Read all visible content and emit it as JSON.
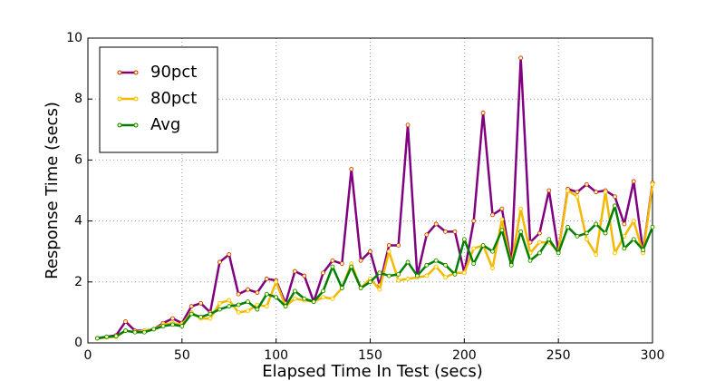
{
  "chart_data": {
    "type": "line",
    "xlabel": "Elapsed Time In Test (secs)",
    "ylabel": "Response Time (secs)",
    "x": [
      5,
      10,
      15,
      20,
      25,
      30,
      35,
      40,
      45,
      50,
      55,
      60,
      65,
      70,
      75,
      80,
      85,
      90,
      95,
      100,
      105,
      110,
      115,
      120,
      125,
      130,
      135,
      140,
      145,
      150,
      155,
      160,
      165,
      170,
      175,
      180,
      185,
      190,
      195,
      200,
      205,
      210,
      215,
      220,
      225,
      230,
      235,
      240,
      245,
      250,
      255,
      260,
      265,
      270,
      275,
      280,
      285,
      290,
      295,
      300
    ],
    "series": [
      {
        "name": "90pct",
        "color": "#800080",
        "values": [
          0.15,
          0.2,
          0.25,
          0.7,
          0.4,
          0.4,
          0.45,
          0.65,
          0.8,
          0.65,
          1.2,
          1.3,
          1.0,
          2.65,
          2.9,
          1.6,
          1.75,
          1.65,
          2.1,
          2.05,
          1.3,
          2.35,
          2.2,
          1.35,
          2.3,
          2.7,
          2.6,
          5.7,
          2.7,
          3.0,
          1.9,
          3.2,
          3.2,
          7.15,
          2.2,
          3.55,
          3.9,
          3.65,
          3.65,
          2.3,
          4.0,
          7.55,
          4.2,
          4.4,
          2.6,
          9.35,
          3.3,
          3.6,
          5.0,
          3.0,
          5.05,
          4.95,
          5.2,
          4.95,
          5.0,
          4.8,
          3.9,
          5.3,
          3.0,
          5.25
        ]
      },
      {
        "name": "80pct",
        "color": "#f5b800",
        "values": [
          0.15,
          0.18,
          0.2,
          0.4,
          0.35,
          0.4,
          0.45,
          0.6,
          0.65,
          0.6,
          1.0,
          0.8,
          0.8,
          1.3,
          1.4,
          1.0,
          1.05,
          1.25,
          1.2,
          2.0,
          1.2,
          1.45,
          1.4,
          1.35,
          1.5,
          1.45,
          1.8,
          2.6,
          1.8,
          2.1,
          1.75,
          3.0,
          2.05,
          2.1,
          2.15,
          2.2,
          2.5,
          2.15,
          2.3,
          2.3,
          3.1,
          3.2,
          2.45,
          4.05,
          2.55,
          4.4,
          2.95,
          3.3,
          3.3,
          3.0,
          5.0,
          4.8,
          3.4,
          2.9,
          4.95,
          2.95,
          3.5,
          4.0,
          2.95,
          5.2
        ]
      },
      {
        "name": "Avg",
        "color": "#008000",
        "values": [
          0.15,
          0.2,
          0.22,
          0.4,
          0.35,
          0.35,
          0.45,
          0.55,
          0.6,
          0.55,
          0.95,
          0.85,
          0.95,
          1.1,
          1.2,
          1.25,
          1.35,
          1.1,
          1.6,
          1.5,
          1.2,
          1.7,
          1.45,
          1.35,
          1.7,
          2.5,
          1.8,
          2.5,
          1.8,
          2.0,
          2.3,
          2.2,
          2.25,
          2.65,
          2.2,
          2.55,
          2.7,
          2.55,
          2.25,
          3.4,
          2.6,
          3.2,
          3.0,
          3.7,
          2.55,
          3.65,
          2.7,
          2.95,
          3.4,
          2.95,
          3.8,
          3.5,
          3.6,
          3.9,
          3.6,
          4.5,
          3.1,
          3.4,
          3.05,
          3.8
        ]
      }
    ],
    "xlim": [
      0,
      300
    ],
    "xticks": [
      0,
      50,
      100,
      150,
      200,
      250,
      300
    ],
    "ylim": [
      0,
      10
    ],
    "yticks": [
      0,
      2,
      4,
      6,
      8,
      10
    ],
    "grid": true,
    "legend": "upper left"
  }
}
